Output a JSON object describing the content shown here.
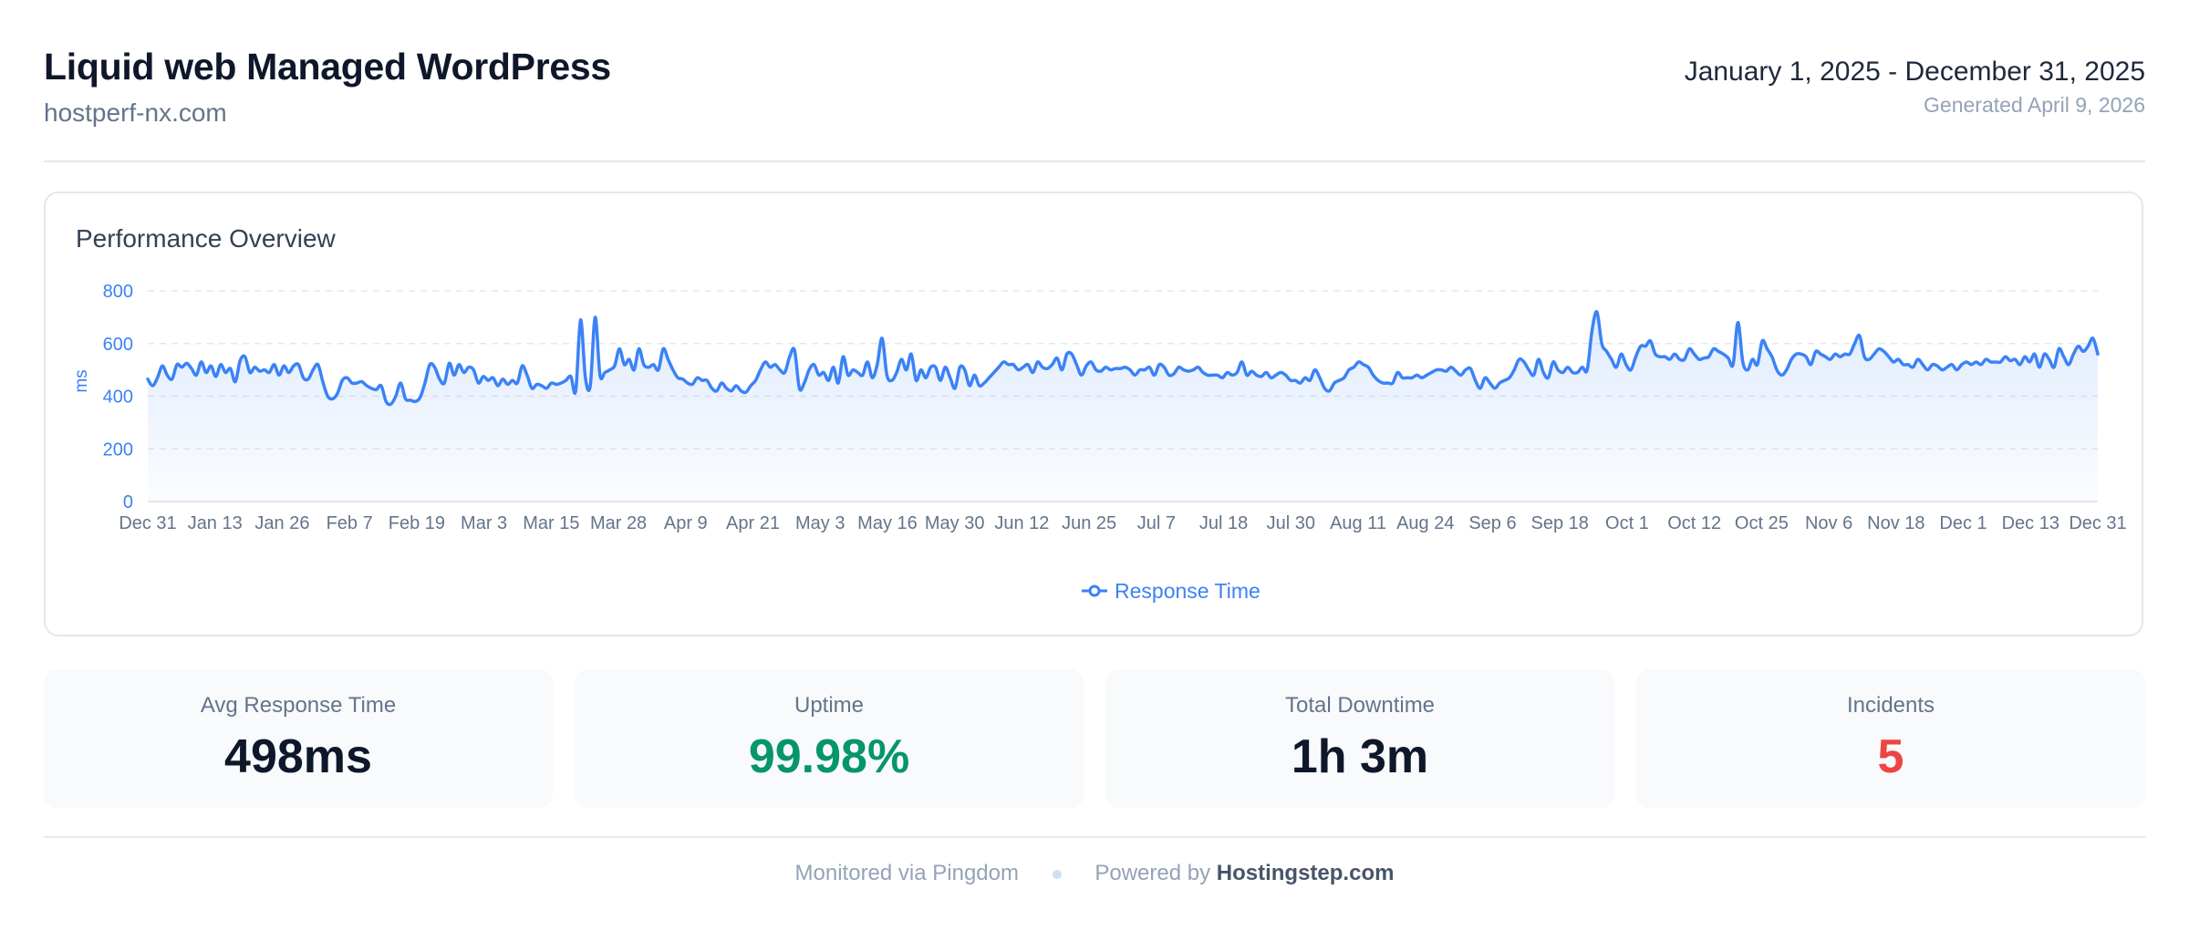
{
  "header": {
    "title": "Liquid web Managed WordPress",
    "domain": "hostperf-nx.com",
    "date_range": "January 1, 2025 - December 31, 2025",
    "generated": "Generated April 9, 2026"
  },
  "chart_card": {
    "title": "Performance Overview"
  },
  "chart_data": {
    "type": "area",
    "title": "Performance Overview",
    "ylabel": "ms",
    "ylim": [
      0,
      800
    ],
    "yticks": [
      0,
      200,
      400,
      600,
      800
    ],
    "grid": true,
    "legend_position": "bottom",
    "color": "#3b82f6",
    "x_tick_labels": [
      "Dec 31",
      "Jan 13",
      "Jan 26",
      "Feb 7",
      "Feb 19",
      "Mar 3",
      "Mar 15",
      "Mar 28",
      "Apr 9",
      "Apr 21",
      "May 3",
      "May 16",
      "May 30",
      "Jun 12",
      "Jun 25",
      "Jul 7",
      "Jul 18",
      "Jul 30",
      "Aug 11",
      "Aug 24",
      "Sep 6",
      "Sep 18",
      "Oct 1",
      "Oct 12",
      "Oct 25",
      "Nov 6",
      "Nov 18",
      "Dec 1",
      "Dec 13",
      "Dec 31"
    ],
    "series": [
      {
        "name": "Response Time",
        "values": [
          465,
          440,
          470,
          515,
          480,
          465,
          520,
          510,
          525,
          505,
          480,
          530,
          490,
          515,
          475,
          520,
          490,
          505,
          455,
          535,
          550,
          490,
          510,
          495,
          500,
          490,
          520,
          480,
          515,
          490,
          515,
          520,
          470,
          465,
          500,
          520,
          455,
          400,
          390,
          410,
          460,
          470,
          450,
          450,
          455,
          440,
          430,
          425,
          440,
          380,
          370,
          400,
          450,
          390,
          385,
          380,
          395,
          450,
          520,
          510,
          465,
          450,
          525,
          480,
          520,
          490,
          510,
          500,
          450,
          475,
          460,
          470,
          440,
          465,
          445,
          460,
          450,
          515,
          480,
          430,
          445,
          440,
          430,
          450,
          445,
          450,
          460,
          475,
          420,
          690,
          470,
          440,
          700,
          480,
          490,
          500,
          515,
          580,
          520,
          540,
          500,
          580,
          520,
          510,
          520,
          500,
          580,
          540,
          500,
          470,
          465,
          450,
          445,
          470,
          460,
          460,
          430,
          420,
          450,
          430,
          420,
          440,
          420,
          415,
          440,
          460,
          500,
          530,
          510,
          520,
          500,
          490,
          550,
          575,
          430,
          450,
          500,
          520,
          480,
          490,
          460,
          510,
          450,
          550,
          480,
          500,
          490,
          480,
          530,
          470,
          520,
          620,
          480,
          460,
          490,
          540,
          500,
          560,
          460,
          500,
          470,
          510,
          510,
          460,
          510,
          470,
          430,
          510,
          500,
          440,
          480,
          440,
          450,
          470,
          490,
          510,
          530,
          520,
          520,
          500,
          510,
          520,
          490,
          530,
          510,
          505,
          520,
          545,
          500,
          560,
          560,
          520,
          480,
          515,
          530,
          500,
          495,
          510,
          500,
          505,
          505,
          510,
          500,
          480,
          500,
          500,
          510,
          480,
          520,
          510,
          480,
          485,
          510,
          500,
          495,
          500,
          510,
          490,
          480,
          480,
          480,
          470,
          490,
          480,
          490,
          530,
          480,
          495,
          480,
          475,
          490,
          470,
          480,
          490,
          480,
          460,
          460,
          450,
          470,
          460,
          500,
          470,
          430,
          420,
          450,
          460,
          470,
          500,
          510,
          530,
          520,
          510,
          480,
          460,
          450,
          450,
          450,
          490,
          470,
          470,
          470,
          480,
          470,
          480,
          490,
          500,
          500,
          495,
          510,
          495,
          480,
          500,
          505,
          460,
          430,
          470,
          450,
          430,
          450,
          460,
          470,
          500,
          540,
          530,
          500,
          480,
          540,
          490,
          470,
          530,
          500,
          490,
          510,
          490,
          490,
          510,
          500,
          650,
          720,
          600,
          570,
          540,
          510,
          560,
          520,
          500,
          550,
          590,
          590,
          610,
          560,
          550,
          550,
          540,
          560,
          540,
          540,
          580,
          560,
          540,
          545,
          550,
          580,
          570,
          560,
          545,
          520,
          680,
          530,
          500,
          540,
          520,
          610,
          580,
          550,
          500,
          480,
          500,
          540,
          560,
          560,
          550,
          520,
          570,
          560,
          550,
          540,
          560,
          550,
          560,
          560,
          600,
          630,
          550,
          540,
          560,
          580,
          570,
          550,
          530,
          540,
          520,
          520,
          510,
          540,
          520,
          500,
          520,
          515,
          500,
          510,
          520,
          500,
          520,
          530,
          520,
          530,
          520,
          540,
          530,
          530,
          530,
          550,
          535,
          540,
          520,
          550,
          530,
          560,
          510,
          560,
          540,
          510,
          580,
          550,
          520,
          560,
          590,
          570,
          590,
          620,
          560
        ]
      }
    ]
  },
  "legend": {
    "label": "Response Time"
  },
  "stats": [
    {
      "label": "Avg Response Time",
      "value": "498ms",
      "color": "#0f172a"
    },
    {
      "label": "Uptime",
      "value": "99.98%",
      "color": "#059669"
    },
    {
      "label": "Total Downtime",
      "value": "1h 3m",
      "color": "#0f172a"
    },
    {
      "label": "Incidents",
      "value": "5",
      "color": "#ef4444"
    }
  ],
  "footer": {
    "monitored": "Monitored via Pingdom",
    "powered_prefix": "Powered by",
    "powered_brand": "Hostingstep.com"
  }
}
